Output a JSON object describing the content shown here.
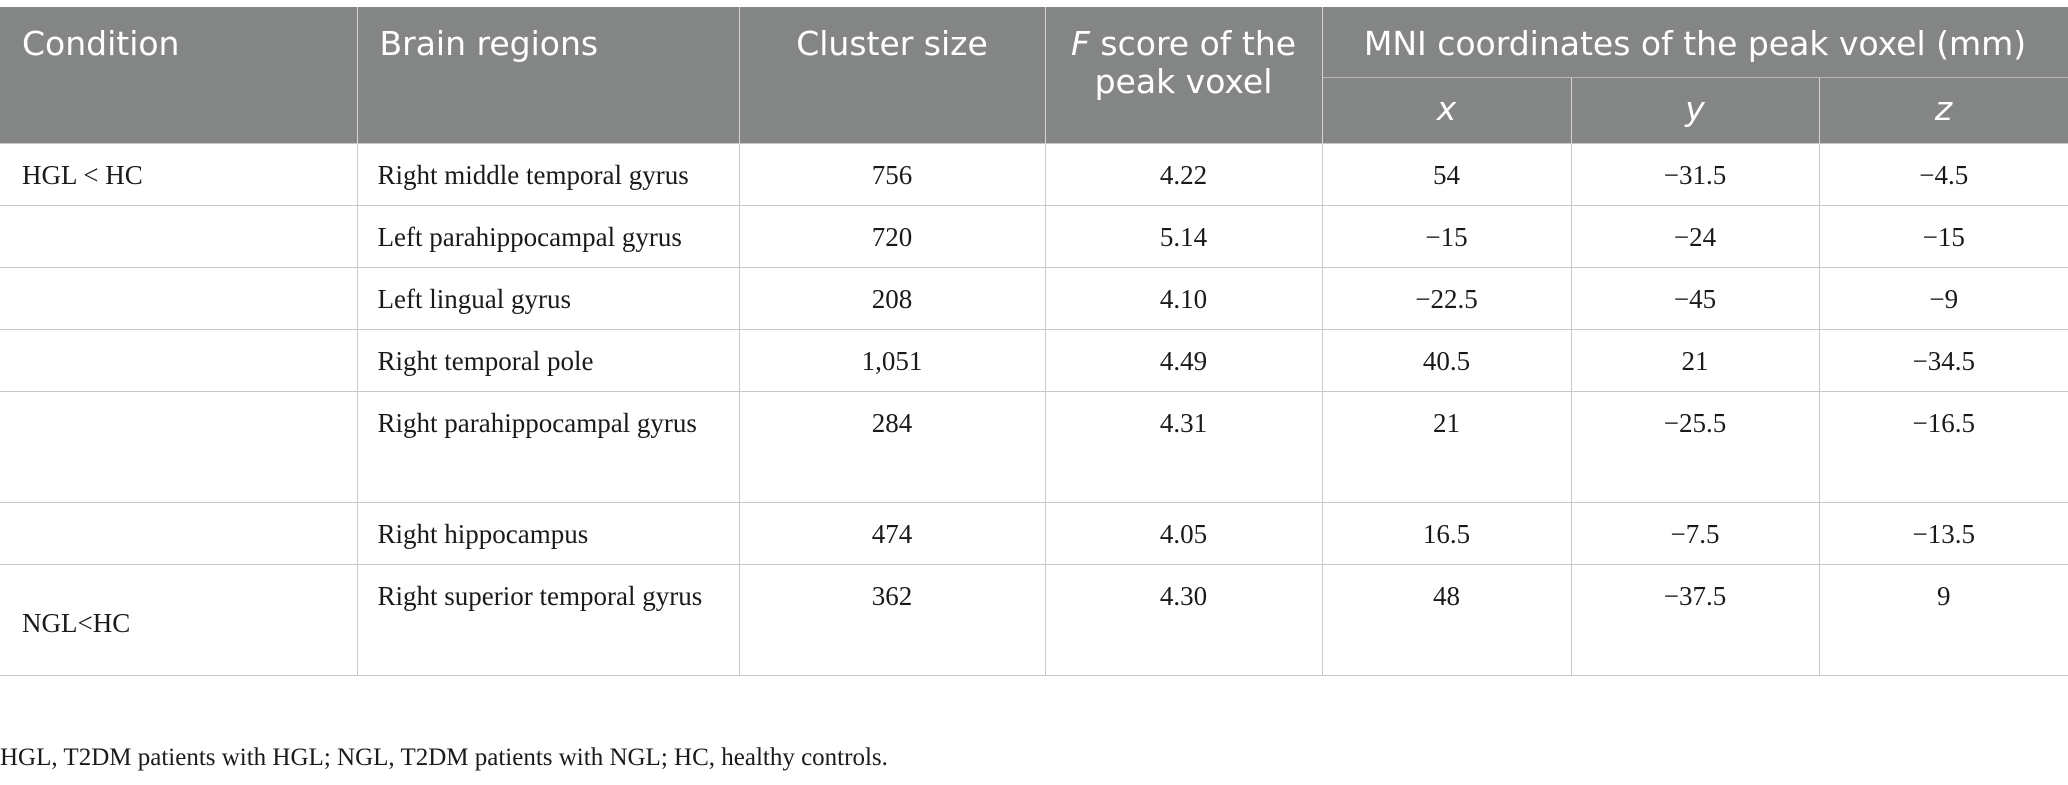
{
  "table": {
    "headers": {
      "condition": "Condition",
      "regions": "Brain regions",
      "cluster": "Cluster size",
      "fscore_italic": "F",
      "fscore_rest": " score of the peak voxel",
      "mni": "MNI coordinates of the peak voxel (mm)",
      "x": "x",
      "y": "y",
      "z": "z"
    },
    "rows": [
      {
        "condition": "HGL < HC",
        "region": "Right middle temporal gyrus",
        "cluster": "756",
        "f": "4.22",
        "x": "54",
        "y": "−31.5",
        "z": "−4.5"
      },
      {
        "condition": "",
        "region": "Left parahippocampal gyrus",
        "cluster": "720",
        "f": "5.14",
        "x": "−15",
        "y": "−24",
        "z": "−15"
      },
      {
        "condition": "",
        "region": "Left lingual gyrus",
        "cluster": "208",
        "f": "4.10",
        "x": "−22.5",
        "y": "−45",
        "z": "−9"
      },
      {
        "condition": "",
        "region": "Right temporal pole",
        "cluster": "1,051",
        "f": "4.49",
        "x": "40.5",
        "y": "21",
        "z": "−34.5"
      },
      {
        "condition": "",
        "region": "Right parahippocampal gyrus",
        "cluster": "284",
        "f": "4.31",
        "x": "21",
        "y": "−25.5",
        "z": "−16.5"
      },
      {
        "condition": "",
        "region": "Right hippocampus",
        "cluster": "474",
        "f": "4.05",
        "x": "16.5",
        "y": "−7.5",
        "z": "−13.5"
      },
      {
        "condition": "NGL<HC",
        "region": "Right superior temporal gyrus",
        "cluster": "362",
        "f": "4.30",
        "x": "48",
        "y": "−37.5",
        "z": "9"
      }
    ]
  },
  "footnote": "HGL, T2DM patients with HGL; NGL, T2DM patients with NGL; HC, healthy controls."
}
